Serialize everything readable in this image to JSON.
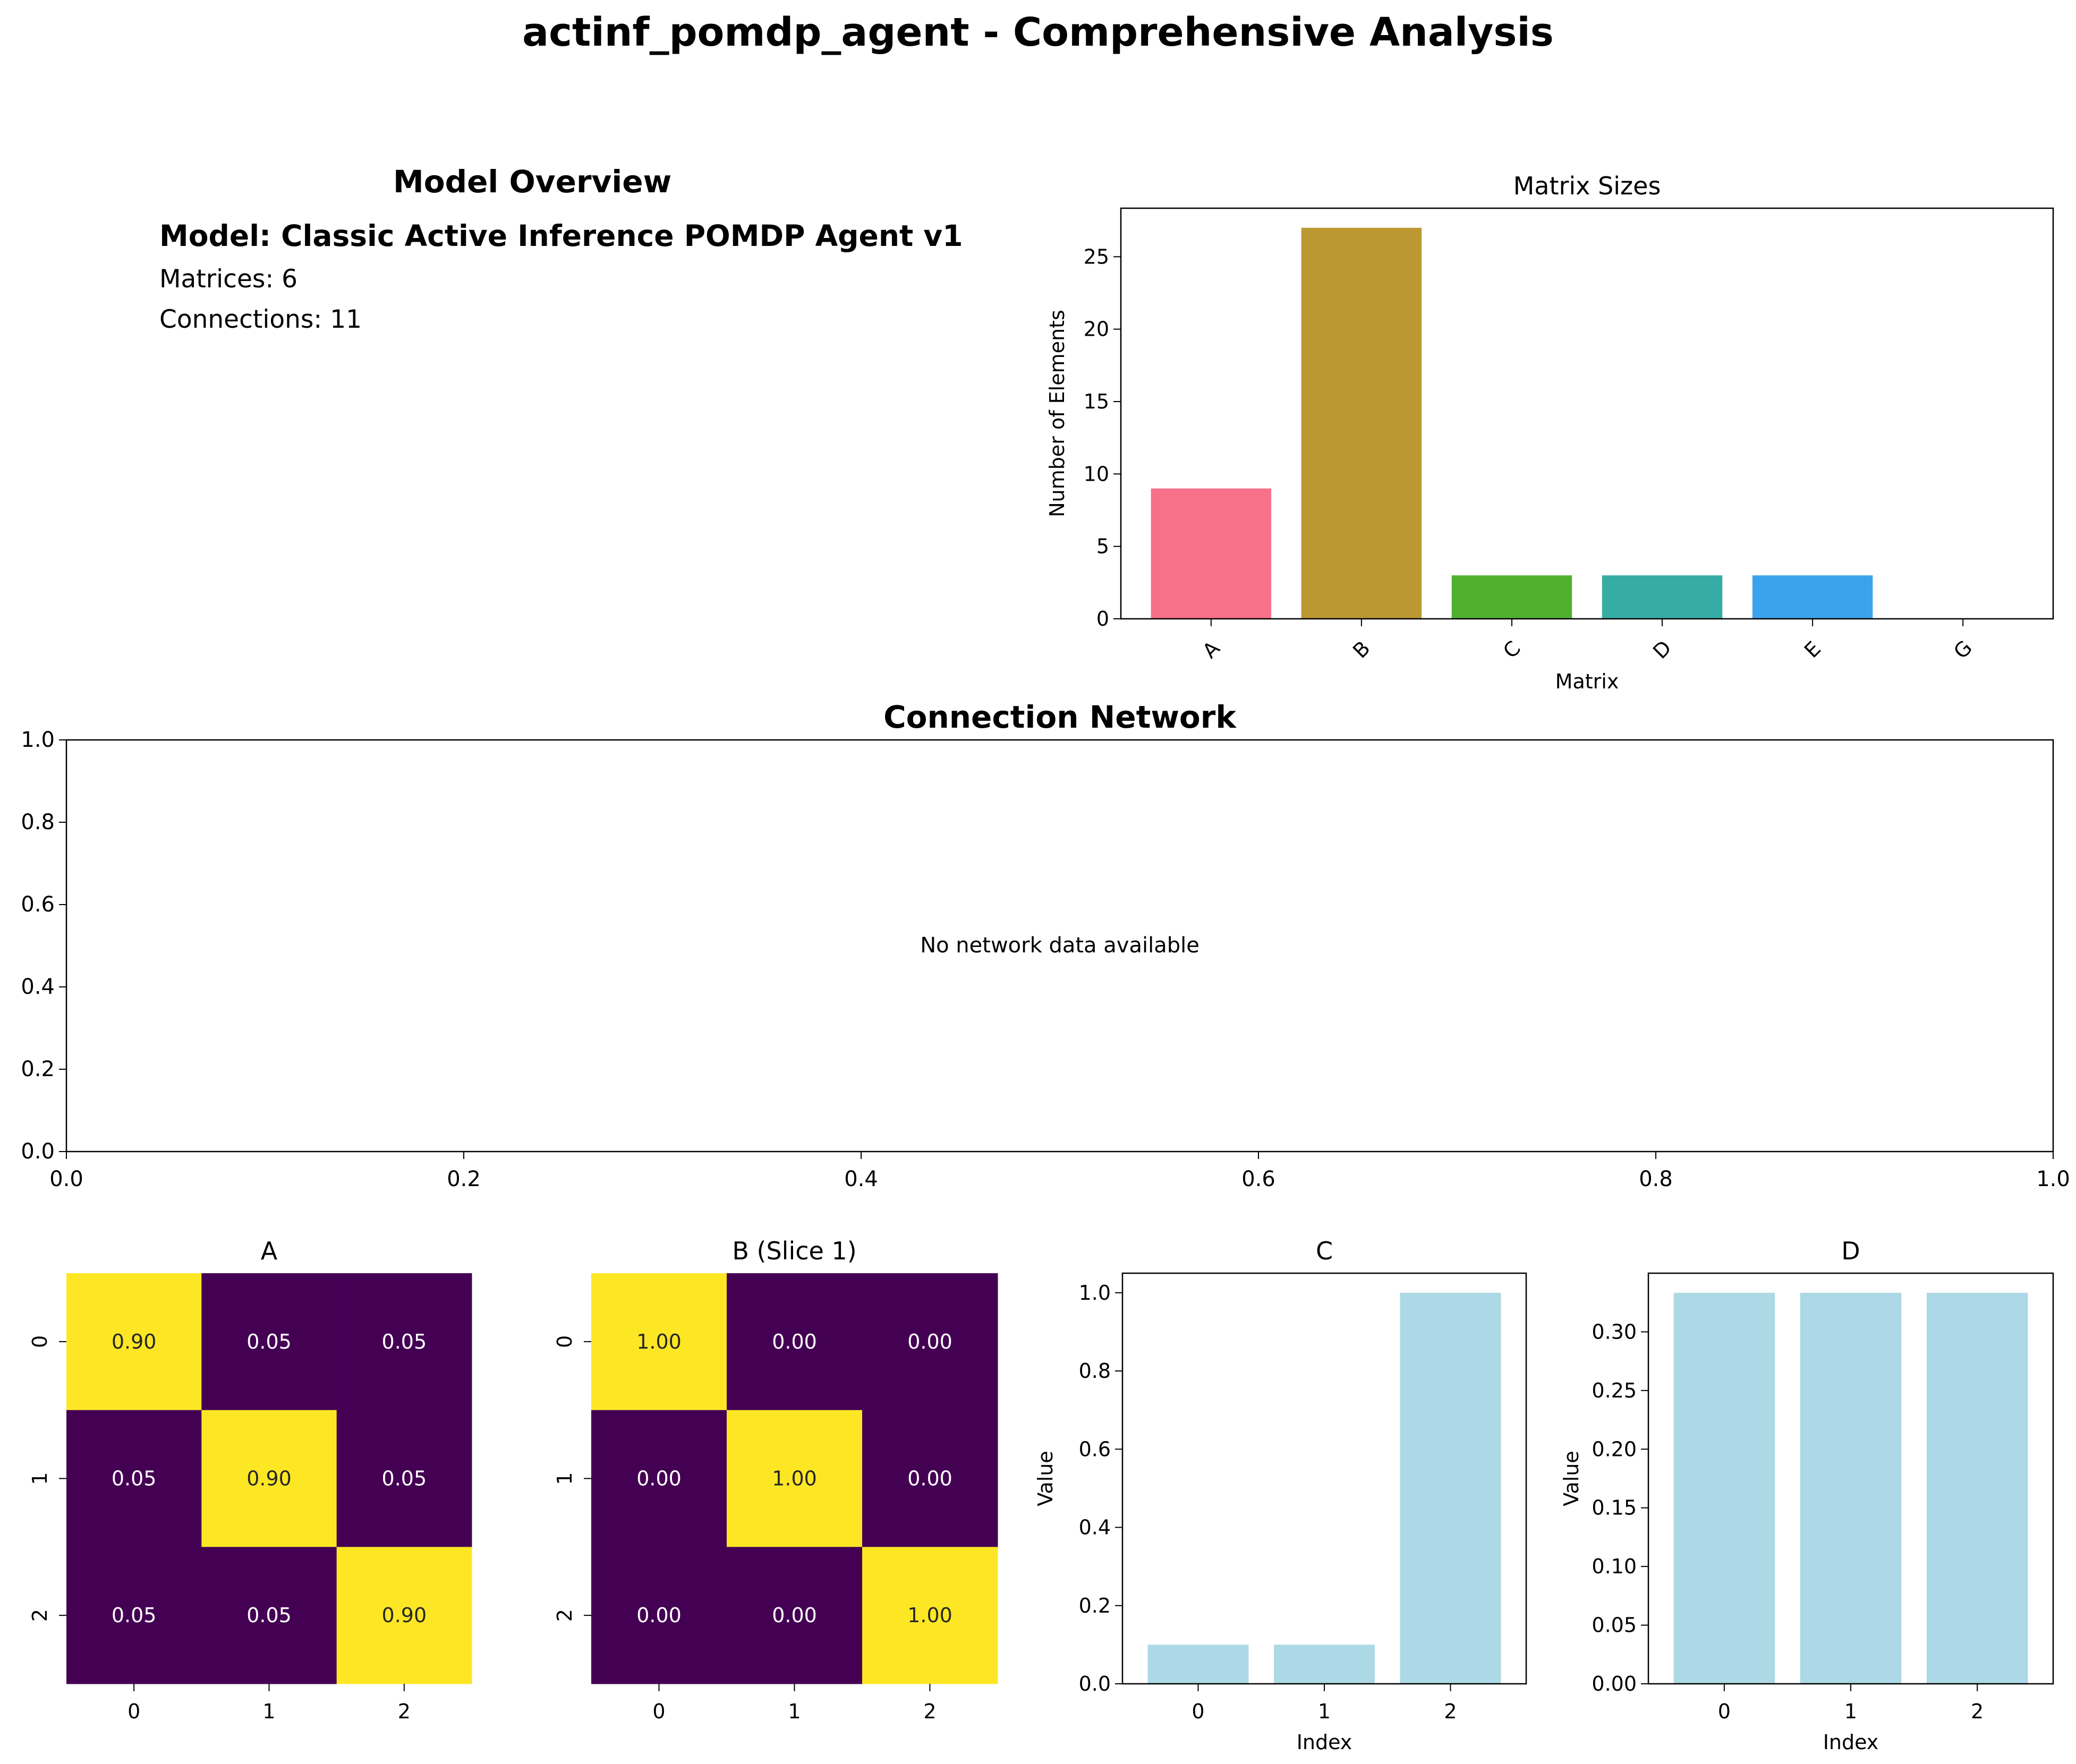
{
  "title": "actinf_pomdp_agent - Comprehensive Analysis",
  "overview": {
    "heading": "Model Overview",
    "model_line": "Model: Classic Active Inference POMDP Agent v1",
    "matrices_line": "Matrices: 6",
    "connections_line": "Connections: 11"
  },
  "chart_data": [
    {
      "id": "matrix-sizes",
      "type": "bar",
      "title": "Matrix Sizes",
      "xlabel": "Matrix",
      "ylabel": "Number of Elements",
      "categories": [
        "A",
        "B",
        "C",
        "D",
        "E",
        "G"
      ],
      "values": [
        9,
        27,
        3,
        3,
        3,
        0
      ],
      "colors": [
        "#f77189",
        "#bb9832",
        "#50b131",
        "#36ada4",
        "#3ba3ec",
        "#e866f4"
      ],
      "ylim": [
        0,
        28.35
      ],
      "yticks": [
        0,
        5,
        10,
        15,
        20,
        25
      ],
      "xtick_rotation": 45
    },
    {
      "id": "connection-network",
      "type": "scatter",
      "title": "Connection Network",
      "annotation": "No network data available",
      "xlim": [
        0,
        1
      ],
      "ylim": [
        0,
        1
      ],
      "xticks": [
        "0.0",
        "0.2",
        "0.4",
        "0.6",
        "0.8",
        "1.0"
      ],
      "yticks": [
        "0.0",
        "0.2",
        "0.4",
        "0.6",
        "0.8",
        "1.0"
      ]
    },
    {
      "id": "heatmap-a",
      "type": "heatmap",
      "title": "A",
      "x_ticks": [
        "0",
        "1",
        "2"
      ],
      "y_ticks": [
        "0",
        "1",
        "2"
      ],
      "values": [
        [
          0.9,
          0.05,
          0.05
        ],
        [
          0.05,
          0.9,
          0.05
        ],
        [
          0.05,
          0.05,
          0.9
        ]
      ],
      "labels": [
        [
          "0.90",
          "0.05",
          "0.05"
        ],
        [
          "0.05",
          "0.90",
          "0.05"
        ],
        [
          "0.05",
          "0.05",
          "0.90"
        ]
      ],
      "colormap": {
        "low": "#440154",
        "high": "#fde725"
      }
    },
    {
      "id": "heatmap-b",
      "type": "heatmap",
      "title": "B (Slice 1)",
      "x_ticks": [
        "0",
        "1",
        "2"
      ],
      "y_ticks": [
        "0",
        "1",
        "2"
      ],
      "values": [
        [
          1,
          0,
          0
        ],
        [
          0,
          1,
          0
        ],
        [
          0,
          0,
          1
        ]
      ],
      "labels": [
        [
          "1.00",
          "0.00",
          "0.00"
        ],
        [
          "0.00",
          "1.00",
          "0.00"
        ],
        [
          "0.00",
          "0.00",
          "1.00"
        ]
      ],
      "colormap": {
        "low": "#440154",
        "high": "#fde725"
      }
    },
    {
      "id": "bar-c",
      "type": "bar",
      "title": "C",
      "xlabel": "Index",
      "ylabel": "Value",
      "categories": [
        "0",
        "1",
        "2"
      ],
      "values": [
        0.1,
        0.1,
        1.0
      ],
      "color": "#add8e6",
      "ylim": [
        0,
        1.05
      ],
      "yticks": [
        "0.0",
        "0.2",
        "0.4",
        "0.6",
        "0.8",
        "1.0"
      ]
    },
    {
      "id": "bar-d",
      "type": "bar",
      "title": "D",
      "xlabel": "Index",
      "ylabel": "Value",
      "categories": [
        "0",
        "1",
        "2"
      ],
      "values": [
        0.3333,
        0.3333,
        0.3333
      ],
      "color": "#add8e6",
      "ylim": [
        0,
        0.35
      ],
      "yticks": [
        "0.00",
        "0.05",
        "0.10",
        "0.15",
        "0.20",
        "0.25",
        "0.30"
      ]
    }
  ]
}
